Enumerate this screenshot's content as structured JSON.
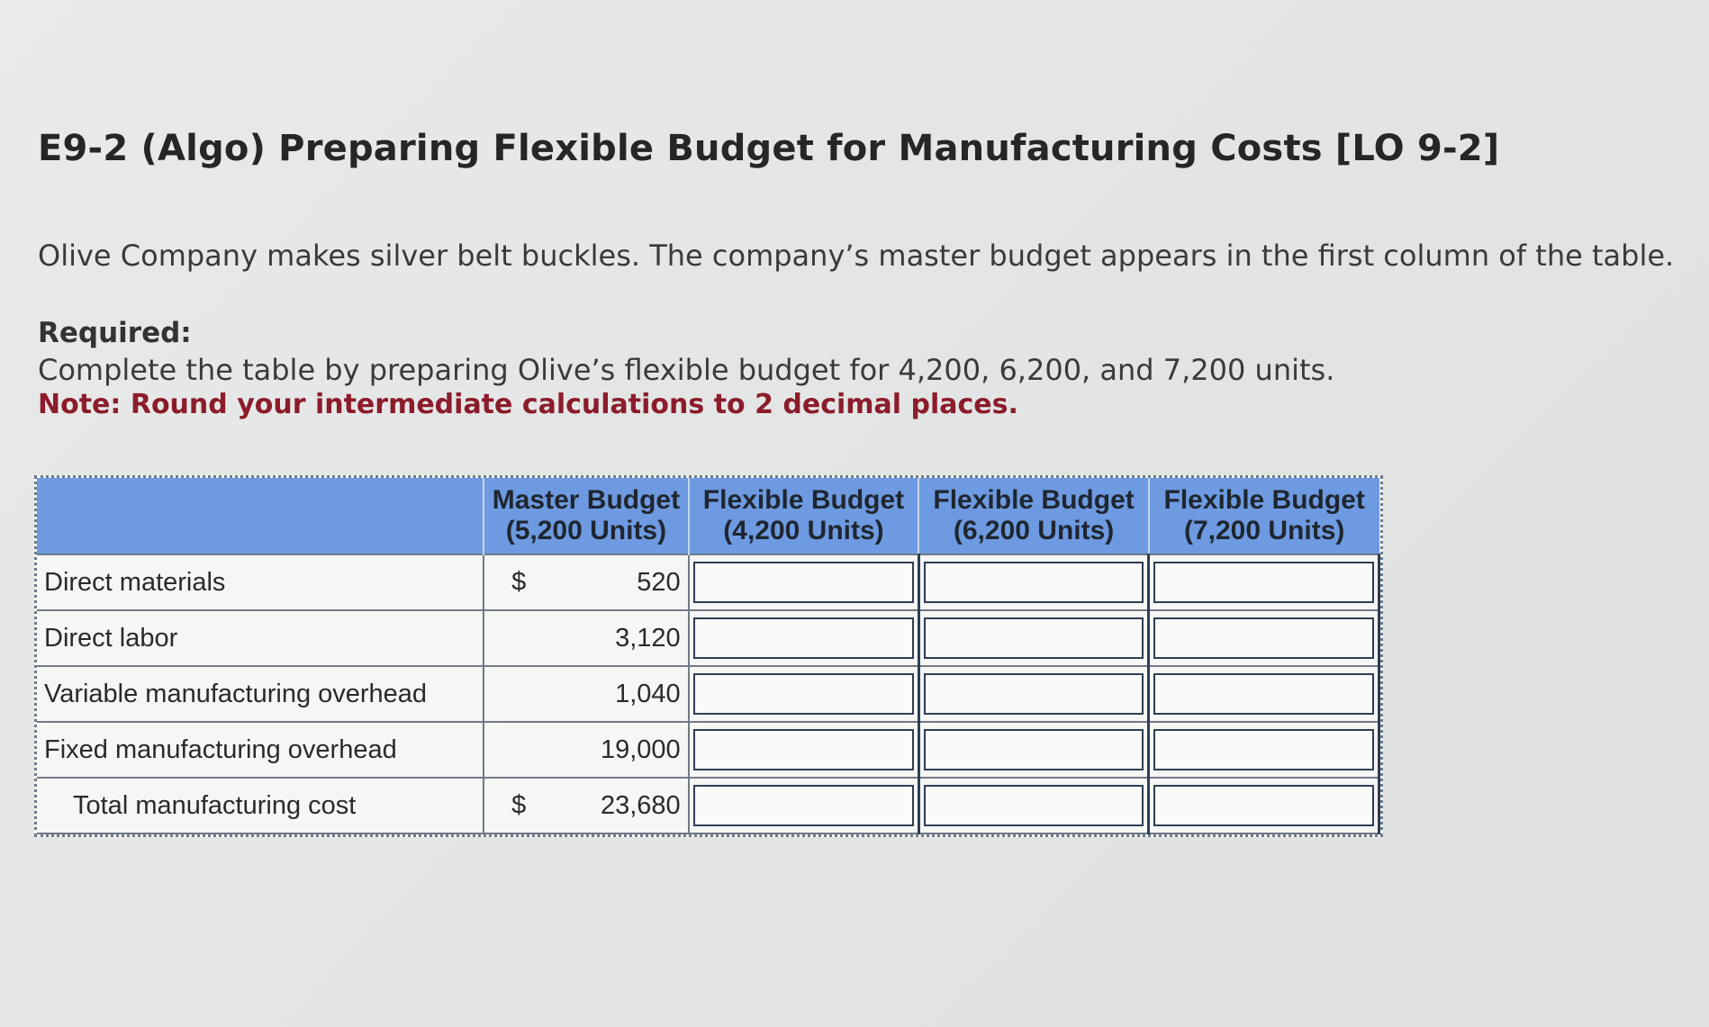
{
  "problem": {
    "title": "E9-2 (Algo) Preparing Flexible Budget for Manufacturing Costs [LO 9-2]",
    "intro": "Olive Company makes silver belt buckles. The company’s master budget appears in the first column of the table.",
    "required_label": "Required:",
    "required_text": "Complete the table by preparing Olive’s flexible budget for 4,200, 6,200, and 7,200 units.",
    "note": "Note: Round your intermediate calculations to 2 decimal places."
  },
  "table": {
    "headers": [
      {
        "line1": "Master Budget",
        "line2": "(5,200 Units)"
      },
      {
        "line1": "Flexible Budget",
        "line2": "(4,200 Units)"
      },
      {
        "line1": "Flexible Budget",
        "line2": "(6,200 Units)"
      },
      {
        "line1": "Flexible Budget",
        "line2": "(7,200 Units)"
      }
    ],
    "rows": [
      {
        "label": "Direct materials",
        "currency": "$",
        "master": "520",
        "inputs": [
          "",
          "",
          ""
        ]
      },
      {
        "label": "Direct labor",
        "currency": "",
        "master": "3,120",
        "inputs": [
          "",
          "",
          ""
        ]
      },
      {
        "label": "Variable manufacturing overhead",
        "currency": "",
        "master": "1,040",
        "inputs": [
          "",
          "",
          ""
        ]
      },
      {
        "label": "Fixed manufacturing overhead",
        "currency": "",
        "master": "19,000",
        "inputs": [
          "",
          "",
          ""
        ]
      },
      {
        "label": "Total manufacturing cost",
        "currency": "$",
        "master": "23,680",
        "inputs": [
          "",
          "",
          ""
        ]
      }
    ]
  }
}
